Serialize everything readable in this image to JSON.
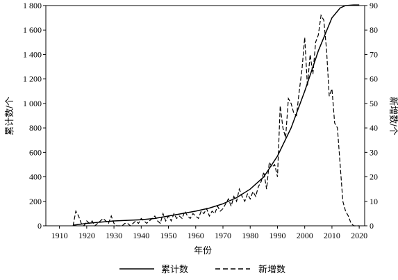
{
  "chart_data": {
    "type": "line",
    "title": "",
    "xlabel": "年份",
    "ylabel_left": "累计数/个",
    "ylabel_right": "新增数/个",
    "xlim": [
      1905,
      2022
    ],
    "ylim_left": [
      0,
      1800
    ],
    "ylim_right": [
      0,
      90
    ],
    "x_ticks": [
      1910,
      1920,
      1930,
      1940,
      1950,
      1960,
      1970,
      1980,
      1990,
      2000,
      2010,
      2020
    ],
    "y_left_ticks": [
      0,
      200,
      400,
      600,
      800,
      1000,
      1200,
      1400,
      1600,
      1800
    ],
    "y_left_tick_labels": [
      "0",
      "200",
      "400",
      "600",
      "800",
      "1 000",
      "1 200",
      "1 400",
      "1 600",
      "1 800"
    ],
    "y_right_ticks": [
      0,
      10,
      20,
      30,
      40,
      50,
      60,
      70,
      80,
      90
    ],
    "grid": false,
    "legend": "bottom",
    "series": [
      {
        "name": "累计数",
        "axis": "left",
        "style": "solid",
        "x": [
          1915,
          1920,
          1925,
          1930,
          1935,
          1940,
          1945,
          1950,
          1955,
          1960,
          1965,
          1970,
          1975,
          1980,
          1985,
          1990,
          1995,
          2000,
          2005,
          2010,
          2013,
          2015,
          2018,
          2020
        ],
        "y": [
          5,
          20,
          30,
          40,
          45,
          50,
          60,
          80,
          100,
          120,
          145,
          180,
          230,
          300,
          400,
          570,
          800,
          1100,
          1430,
          1700,
          1780,
          1800,
          1805,
          1805
        ]
      },
      {
        "name": "新增数",
        "axis": "right",
        "style": "dashed",
        "x": [
          1915,
          1916,
          1917,
          1918,
          1919,
          1920,
          1921,
          1922,
          1923,
          1924,
          1925,
          1926,
          1927,
          1928,
          1929,
          1930,
          1931,
          1932,
          1933,
          1934,
          1935,
          1936,
          1937,
          1938,
          1939,
          1940,
          1941,
          1942,
          1943,
          1944,
          1945,
          1946,
          1947,
          1948,
          1949,
          1950,
          1951,
          1952,
          1953,
          1954,
          1955,
          1956,
          1957,
          1958,
          1959,
          1960,
          1961,
          1962,
          1963,
          1964,
          1965,
          1966,
          1967,
          1968,
          1969,
          1970,
          1971,
          1972,
          1973,
          1974,
          1975,
          1976,
          1977,
          1978,
          1979,
          1980,
          1981,
          1982,
          1983,
          1984,
          1985,
          1986,
          1987,
          1988,
          1989,
          1990,
          1991,
          1992,
          1993,
          1994,
          1995,
          1996,
          1997,
          1998,
          1999,
          2000,
          2001,
          2002,
          2003,
          2004,
          2005,
          2006,
          2007,
          2008,
          2009,
          2010,
          2011,
          2012,
          2013,
          2014,
          2015,
          2016,
          2017,
          2018,
          2019,
          2020
        ],
        "y": [
          0,
          6,
          4,
          1,
          0,
          2,
          1,
          2,
          0,
          1,
          2,
          3,
          2,
          1,
          4,
          1,
          0,
          0,
          0,
          1,
          1,
          0,
          1,
          2,
          1,
          3,
          2,
          1,
          2,
          3,
          4,
          2,
          1,
          5,
          2,
          4,
          2,
          5,
          3,
          4,
          3,
          6,
          4,
          3,
          5,
          4,
          3,
          6,
          5,
          7,
          4,
          6,
          5,
          8,
          6,
          7,
          9,
          11,
          8,
          12,
          10,
          15,
          12,
          10,
          13,
          11,
          14,
          12,
          16,
          18,
          22,
          15,
          26,
          24,
          25,
          20,
          49,
          40,
          36,
          52,
          50,
          46,
          45,
          55,
          64,
          77,
          57,
          70,
          62,
          75,
          78,
          86,
          84,
          72,
          53,
          56,
          42,
          40,
          25,
          10,
          6,
          4,
          1,
          0,
          0,
          0
        ]
      }
    ]
  }
}
